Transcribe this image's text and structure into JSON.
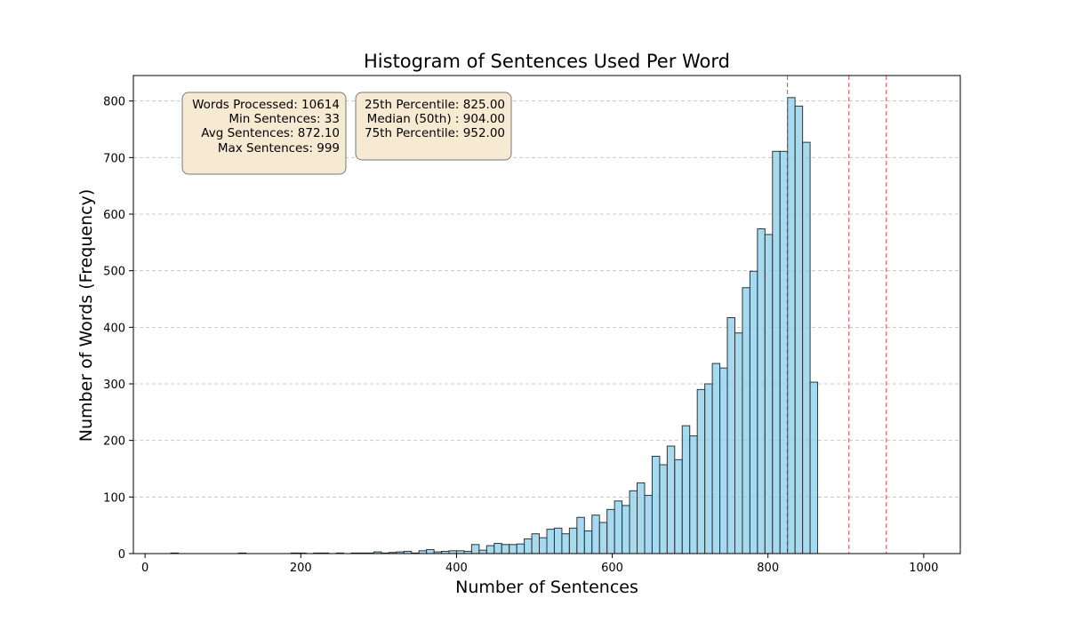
{
  "chart_data": {
    "type": "bar",
    "title": "Histogram of Sentences Used Per Word",
    "xlabel": "Number of Sentences",
    "ylabel": "Number of Words (Frequency)",
    "xlim": [
      -15,
      1047
    ],
    "ylim": [
      0,
      845
    ],
    "xticks": [
      0,
      200,
      400,
      600,
      800,
      1000
    ],
    "yticks": [
      0,
      100,
      200,
      300,
      400,
      500,
      600,
      700,
      800
    ],
    "grid": "y-dashed",
    "bin_start": 33,
    "bin_width": 9.66,
    "values": [
      1,
      0,
      0,
      0,
      0,
      0,
      0,
      0,
      0,
      1,
      0,
      0,
      0,
      0,
      0,
      0,
      1,
      1,
      0,
      1,
      1,
      0,
      1,
      0,
      1,
      1,
      1,
      3,
      1,
      2,
      3,
      4,
      1,
      5,
      7,
      3,
      4,
      5,
      5,
      4,
      16,
      6,
      14,
      18,
      16,
      16,
      17,
      26,
      35,
      28,
      43,
      45,
      35,
      45,
      64,
      40,
      68,
      55,
      78,
      93,
      85,
      111,
      125,
      103,
      172,
      157,
      190,
      166,
      226,
      208,
      290,
      300,
      336,
      328,
      417,
      390,
      470,
      499,
      574,
      564,
      711,
      711,
      806,
      791,
      727,
      303
    ],
    "bar_color": "#87CEEB",
    "bar_edge_color": "#333333",
    "vlines": [
      {
        "name": "25th Percentile",
        "x": 825.0,
        "color": "#e8474a"
      },
      {
        "name": "Median (50th)",
        "x": 904.0,
        "color": "#e8474a"
      },
      {
        "name": "75th Percentile",
        "x": 952.0,
        "color": "#e8474a"
      }
    ]
  },
  "stats_box": {
    "words_processed": "Words Processed: 10614",
    "min_sentences": "Min Sentences: 33",
    "avg_sentences": "Avg Sentences: 872.10",
    "max_sentences": "Max Sentences: 999"
  },
  "percentile_box": {
    "p25": "25th Percentile: 825.00",
    "median": "Median (50th) : 904.00",
    "p75": "75th Percentile: 952.00"
  },
  "colors": {
    "box_fill": "#f7ead2",
    "box_stroke": "#777777",
    "grid": "#c8c8c8"
  }
}
